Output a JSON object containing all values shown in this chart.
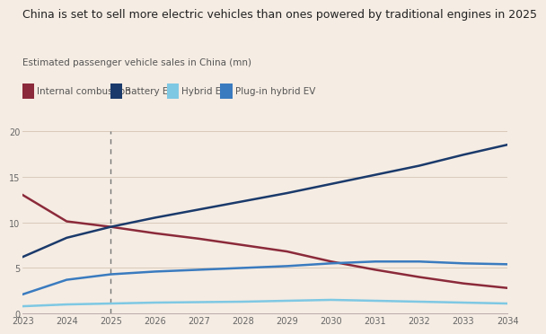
{
  "title": "China is set to sell more electric vehicles than ones powered by traditional engines in 2025",
  "subtitle": "Estimated passenger vehicle sales in China (mn)",
  "background_color": "#f5ece3",
  "years": [
    2023,
    2024,
    2025,
    2026,
    2027,
    2028,
    2029,
    2030,
    2031,
    2032,
    2033,
    2034
  ],
  "internal_combustion": [
    13.0,
    10.1,
    9.5,
    8.8,
    8.2,
    7.5,
    6.8,
    5.7,
    4.8,
    4.0,
    3.3,
    2.8
  ],
  "battery_ev": [
    6.2,
    8.3,
    9.5,
    10.5,
    11.4,
    12.3,
    13.2,
    14.2,
    15.2,
    16.2,
    17.4,
    18.5
  ],
  "hybrid_ev": [
    0.8,
    1.0,
    1.1,
    1.2,
    1.25,
    1.3,
    1.4,
    1.5,
    1.4,
    1.3,
    1.2,
    1.1
  ],
  "plugin_hybrid_ev": [
    2.1,
    3.7,
    4.3,
    4.6,
    4.8,
    5.0,
    5.2,
    5.5,
    5.7,
    5.7,
    5.5,
    5.4
  ],
  "colors": {
    "internal_combustion": "#8b2a3a",
    "battery_ev": "#1a3a6b",
    "hybrid_ev": "#7ec8e3",
    "plugin_hybrid_ev": "#3a7bbf"
  },
  "legend_labels": [
    "Internal combustion",
    "Battery EV",
    "Hybrid EV",
    "Plug-in hybrid EV"
  ],
  "ylim": [
    0,
    20
  ],
  "yticks": [
    0,
    5,
    10,
    15,
    20
  ],
  "dashed_line_x": 2025,
  "title_fontsize": 9.0,
  "subtitle_fontsize": 7.5,
  "legend_fontsize": 7.5,
  "tick_fontsize": 7.0
}
